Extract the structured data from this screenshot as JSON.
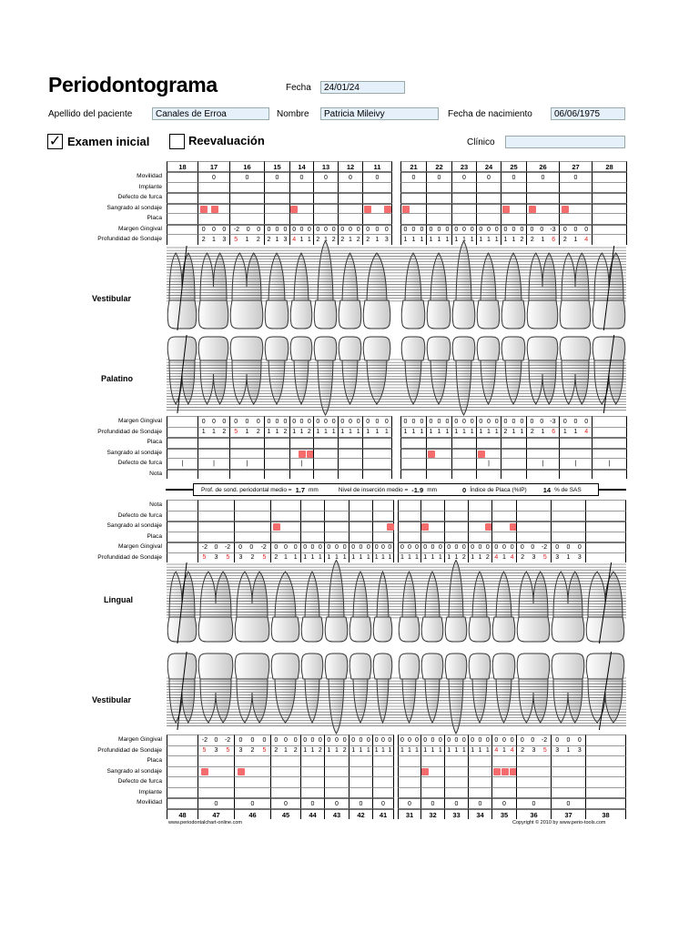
{
  "header": {
    "title": "Periodontograma",
    "date_label": "Fecha",
    "date_value": "24/01/24",
    "surname_label": "Apellido del paciente",
    "surname_value": "Canales de Erroa",
    "name_label": "Nombre",
    "name_value": "Patricia Mileivy",
    "birth_label": "Fecha de nacimiento",
    "birth_value": "06/06/1975",
    "initial_exam_label": "Examen inicial",
    "initial_exam_checked": true,
    "reeval_label": "Reevaluación",
    "reeval_checked": false,
    "clinician_label": "Clínico",
    "clinician_value": ""
  },
  "section_labels": {
    "upper_vestibular": "Vestibular",
    "palatal": "Palatino",
    "lingual": "Lingual",
    "lower_vestibular": "Vestibular"
  },
  "row_labels": {
    "mobility": "Movilidad",
    "implant": "Implante",
    "furcation": "Defecto de furca",
    "bleeding": "Sangrado al sondaje",
    "plaque": "Placa",
    "margin": "Margen Gingival",
    "depth": "Profundidad de Sondaje",
    "note": "Nota"
  },
  "summary": {
    "depth_label": "Prof. de sond. periodontal medio =",
    "depth_value": "1.7",
    "depth_unit": "mm",
    "attachment_label": "Nivel de inserción medio =",
    "attachment_value": "-1.9",
    "attachment_unit": "mm",
    "plaque_value": "0",
    "plaque_label": "Índice de Placa (%IP)",
    "bop_value": "14",
    "bop_label": "% de SAS"
  },
  "footer": {
    "left": "www.periodontalchart-online.com",
    "right": "Copyright © 2010 by www.perio-tools.com"
  },
  "colors": {
    "bleeding": "#f56c6c",
    "probing_line": "#1a1aff",
    "margin_line": "#e01010",
    "pocket_fill": "#3a3aa0",
    "field_bg": "#e6f0fb",
    "deep_value": "#e02020"
  },
  "upper": [
    {
      "n": "18",
      "missing": true,
      "mob": "",
      "a": {
        "bleed": [
          0,
          0,
          0
        ],
        "margin": null,
        "depth": null,
        "furca": ""
      },
      "b": {
        "bleed": [
          0,
          0,
          0
        ],
        "margin": null,
        "depth": null,
        "furca": "|"
      }
    },
    {
      "n": "17",
      "mob": "0",
      "a": {
        "bleed": [
          1,
          1,
          0
        ],
        "margin": [
          0,
          0,
          0
        ],
        "depth": [
          2,
          1,
          3
        ],
        "furca": ""
      },
      "b": {
        "bleed": [
          0,
          0,
          0
        ],
        "margin": [
          0,
          0,
          0
        ],
        "depth": [
          1,
          1,
          2
        ],
        "furca": "|"
      }
    },
    {
      "n": "16",
      "mob": "0",
      "a": {
        "bleed": [
          0,
          0,
          0
        ],
        "margin": [
          -2,
          0,
          0
        ],
        "depth": [
          5,
          1,
          2
        ],
        "furca": ""
      },
      "b": {
        "bleed": [
          0,
          0,
          0
        ],
        "margin": [
          0,
          0,
          0
        ],
        "depth": [
          5,
          1,
          2
        ],
        "furca": "|"
      }
    },
    {
      "n": "15",
      "mob": "0",
      "a": {
        "bleed": [
          0,
          0,
          0
        ],
        "margin": [
          0,
          0,
          0
        ],
        "depth": [
          2,
          1,
          3
        ],
        "furca": ""
      },
      "b": {
        "bleed": [
          0,
          0,
          0
        ],
        "margin": [
          0,
          0,
          0
        ],
        "depth": [
          1,
          1,
          2
        ],
        "furca": ""
      }
    },
    {
      "n": "14",
      "mob": "0",
      "a": {
        "bleed": [
          1,
          0,
          0
        ],
        "margin": [
          0,
          0,
          0
        ],
        "depth": [
          4,
          1,
          1
        ],
        "furca": ""
      },
      "b": {
        "bleed": [
          0,
          1,
          1
        ],
        "margin": [
          0,
          0,
          0
        ],
        "depth": [
          1,
          1,
          2
        ],
        "furca": "|"
      }
    },
    {
      "n": "13",
      "mob": "0",
      "a": {
        "bleed": [
          0,
          0,
          0
        ],
        "margin": [
          0,
          0,
          0
        ],
        "depth": [
          2,
          1,
          2
        ],
        "furca": ""
      },
      "b": {
        "bleed": [
          0,
          0,
          0
        ],
        "margin": [
          0,
          0,
          0
        ],
        "depth": [
          1,
          1,
          1
        ],
        "furca": ""
      }
    },
    {
      "n": "12",
      "mob": "0",
      "a": {
        "bleed": [
          0,
          0,
          0
        ],
        "margin": [
          0,
          0,
          0
        ],
        "depth": [
          2,
          1,
          2
        ],
        "furca": ""
      },
      "b": {
        "bleed": [
          0,
          0,
          0
        ],
        "margin": [
          0,
          0,
          0
        ],
        "depth": [
          1,
          1,
          1
        ],
        "furca": ""
      }
    },
    {
      "n": "11",
      "mob": "0",
      "a": {
        "bleed": [
          1,
          0,
          1
        ],
        "margin": [
          0,
          0,
          0
        ],
        "depth": [
          2,
          1,
          3
        ],
        "furca": ""
      },
      "b": {
        "bleed": [
          0,
          0,
          0
        ],
        "margin": [
          0,
          0,
          0
        ],
        "depth": [
          1,
          1,
          1
        ],
        "furca": ""
      }
    },
    {
      "n": "21",
      "mob": "0",
      "a": {
        "bleed": [
          1,
          0,
          0
        ],
        "margin": [
          0,
          0,
          0
        ],
        "depth": [
          1,
          1,
          1
        ],
        "furca": ""
      },
      "b": {
        "bleed": [
          0,
          0,
          0
        ],
        "margin": [
          0,
          0,
          0
        ],
        "depth": [
          1,
          1,
          1
        ],
        "furca": ""
      }
    },
    {
      "n": "22",
      "mob": "0",
      "a": {
        "bleed": [
          0,
          0,
          0
        ],
        "margin": [
          0,
          0,
          0
        ],
        "depth": [
          1,
          1,
          1
        ],
        "furca": ""
      },
      "b": {
        "bleed": [
          1,
          0,
          0
        ],
        "margin": [
          0,
          0,
          0
        ],
        "depth": [
          1,
          1,
          1
        ],
        "furca": ""
      }
    },
    {
      "n": "23",
      "mob": "0",
      "a": {
        "bleed": [
          0,
          0,
          0
        ],
        "margin": [
          0,
          0,
          0
        ],
        "depth": [
          1,
          1,
          1
        ],
        "furca": ""
      },
      "b": {
        "bleed": [
          0,
          0,
          0
        ],
        "margin": [
          0,
          0,
          0
        ],
        "depth": [
          1,
          1,
          1
        ],
        "furca": ""
      }
    },
    {
      "n": "24",
      "mob": "0",
      "a": {
        "bleed": [
          0,
          0,
          0
        ],
        "margin": [
          0,
          0,
          0
        ],
        "depth": [
          1,
          1,
          1
        ],
        "furca": ""
      },
      "b": {
        "bleed": [
          1,
          0,
          0
        ],
        "margin": [
          0,
          0,
          0
        ],
        "depth": [
          1,
          1,
          1
        ],
        "furca": "|"
      }
    },
    {
      "n": "25",
      "mob": "0",
      "a": {
        "bleed": [
          1,
          0,
          0
        ],
        "margin": [
          0,
          0,
          0
        ],
        "depth": [
          1,
          1,
          2
        ],
        "furca": ""
      },
      "b": {
        "bleed": [
          0,
          0,
          0
        ],
        "margin": [
          0,
          0,
          0
        ],
        "depth": [
          2,
          1,
          1
        ],
        "furca": ""
      }
    },
    {
      "n": "26",
      "mob": "0",
      "a": {
        "bleed": [
          1,
          0,
          0
        ],
        "margin": [
          0,
          0,
          -3
        ],
        "depth": [
          2,
          1,
          6
        ],
        "furca": ""
      },
      "b": {
        "bleed": [
          0,
          0,
          0
        ],
        "margin": [
          0,
          0,
          -3
        ],
        "depth": [
          2,
          1,
          6
        ],
        "furca": "|"
      }
    },
    {
      "n": "27",
      "mob": "0",
      "a": {
        "bleed": [
          1,
          0,
          0
        ],
        "margin": [
          0,
          0,
          0
        ],
        "depth": [
          2,
          1,
          4
        ],
        "furca": ""
      },
      "b": {
        "bleed": [
          0,
          0,
          0
        ],
        "margin": [
          0,
          0,
          0
        ],
        "depth": [
          1,
          1,
          4
        ],
        "furca": "|"
      }
    },
    {
      "n": "28",
      "missing": true,
      "mob": "",
      "a": {
        "bleed": [
          0,
          0,
          0
        ],
        "margin": null,
        "depth": null,
        "furca": ""
      },
      "b": {
        "bleed": [
          0,
          0,
          0
        ],
        "margin": null,
        "depth": null,
        "furca": "|"
      }
    }
  ],
  "lower": [
    {
      "n": "48",
      "missing": true,
      "mob": "",
      "a": {
        "bleed": [
          0,
          0,
          0
        ],
        "margin": null,
        "depth": null
      },
      "b": {
        "bleed": [
          0,
          0,
          0
        ],
        "margin": null,
        "depth": null
      }
    },
    {
      "n": "47",
      "mob": "0",
      "a": {
        "bleed": [
          0,
          0,
          0
        ],
        "margin": [
          -2,
          0,
          -2
        ],
        "depth": [
          5,
          3,
          5
        ]
      },
      "b": {
        "bleed": [
          1,
          0,
          0
        ],
        "margin": [
          -2,
          0,
          -2
        ],
        "depth": [
          5,
          3,
          5
        ]
      }
    },
    {
      "n": "46",
      "mob": "0",
      "a": {
        "bleed": [
          0,
          0,
          0
        ],
        "margin": [
          0,
          0,
          -2
        ],
        "depth": [
          3,
          2,
          5
        ]
      },
      "b": {
        "bleed": [
          1,
          0,
          0
        ],
        "margin": [
          0,
          0,
          0
        ],
        "depth": [
          3,
          2,
          5
        ]
      }
    },
    {
      "n": "45",
      "mob": "0",
      "a": {
        "bleed": [
          1,
          0,
          0
        ],
        "margin": [
          0,
          0,
          0
        ],
        "depth": [
          2,
          1,
          1
        ]
      },
      "b": {
        "bleed": [
          0,
          0,
          0
        ],
        "margin": [
          0,
          0,
          0
        ],
        "depth": [
          2,
          1,
          2
        ]
      }
    },
    {
      "n": "44",
      "mob": "0",
      "a": {
        "bleed": [
          0,
          0,
          0
        ],
        "margin": [
          0,
          0,
          0
        ],
        "depth": [
          1,
          1,
          1
        ]
      },
      "b": {
        "bleed": [
          0,
          0,
          0
        ],
        "margin": [
          0,
          0,
          0
        ],
        "depth": [
          1,
          1,
          2
        ]
      }
    },
    {
      "n": "43",
      "mob": "0",
      "a": {
        "bleed": [
          0,
          0,
          0
        ],
        "margin": [
          0,
          0,
          0
        ],
        "depth": [
          1,
          1,
          1
        ]
      },
      "b": {
        "bleed": [
          0,
          0,
          0
        ],
        "margin": [
          0,
          0,
          0
        ],
        "depth": [
          1,
          1,
          2
        ]
      }
    },
    {
      "n": "42",
      "mob": "0",
      "a": {
        "bleed": [
          0,
          0,
          0
        ],
        "margin": [
          0,
          0,
          0
        ],
        "depth": [
          1,
          1,
          1
        ]
      },
      "b": {
        "bleed": [
          0,
          0,
          0
        ],
        "margin": [
          0,
          0,
          0
        ],
        "depth": [
          1,
          1,
          1
        ]
      }
    },
    {
      "n": "41",
      "mob": "0",
      "a": {
        "bleed": [
          0,
          0,
          1
        ],
        "margin": [
          0,
          0,
          0
        ],
        "depth": [
          1,
          1,
          1
        ]
      },
      "b": {
        "bleed": [
          0,
          0,
          0
        ],
        "margin": [
          0,
          0,
          0
        ],
        "depth": [
          1,
          1,
          1
        ]
      }
    },
    {
      "n": "31",
      "mob": "0",
      "a": {
        "bleed": [
          0,
          0,
          0
        ],
        "margin": [
          0,
          0,
          0
        ],
        "depth": [
          1,
          1,
          1
        ]
      },
      "b": {
        "bleed": [
          0,
          0,
          0
        ],
        "margin": [
          0,
          0,
          0
        ],
        "depth": [
          1,
          1,
          1
        ]
      }
    },
    {
      "n": "32",
      "mob": "0",
      "a": {
        "bleed": [
          1,
          0,
          0
        ],
        "margin": [
          0,
          0,
          0
        ],
        "depth": [
          1,
          1,
          1
        ]
      },
      "b": {
        "bleed": [
          1,
          0,
          0
        ],
        "margin": [
          0,
          0,
          0
        ],
        "depth": [
          1,
          1,
          1
        ]
      }
    },
    {
      "n": "33",
      "mob": "0",
      "a": {
        "bleed": [
          0,
          0,
          0
        ],
        "margin": [
          0,
          0,
          0
        ],
        "depth": [
          1,
          1,
          2
        ]
      },
      "b": {
        "bleed": [
          0,
          0,
          0
        ],
        "margin": [
          0,
          0,
          0
        ],
        "depth": [
          1,
          1,
          1
        ]
      }
    },
    {
      "n": "34",
      "mob": "0",
      "a": {
        "bleed": [
          0,
          0,
          1
        ],
        "margin": [
          0,
          0,
          0
        ],
        "depth": [
          1,
          1,
          2
        ]
      },
      "b": {
        "bleed": [
          0,
          0,
          0
        ],
        "margin": [
          0,
          0,
          0
        ],
        "depth": [
          1,
          1,
          1
        ]
      }
    },
    {
      "n": "35",
      "mob": "0",
      "a": {
        "bleed": [
          0,
          0,
          1
        ],
        "margin": [
          0,
          0,
          0
        ],
        "depth": [
          4,
          1,
          4
        ]
      },
      "b": {
        "bleed": [
          1,
          1,
          1
        ],
        "margin": [
          0,
          0,
          0
        ],
        "depth": [
          4,
          1,
          4
        ]
      }
    },
    {
      "n": "36",
      "mob": "0",
      "a": {
        "bleed": [
          0,
          0,
          0
        ],
        "margin": [
          0,
          0,
          -2
        ],
        "depth": [
          2,
          3,
          5
        ]
      },
      "b": {
        "bleed": [
          0,
          0,
          0
        ],
        "margin": [
          0,
          0,
          -2
        ],
        "depth": [
          2,
          3,
          5
        ]
      }
    },
    {
      "n": "37",
      "mob": "0",
      "a": {
        "bleed": [
          0,
          0,
          0
        ],
        "margin": [
          0,
          0,
          0
        ],
        "depth": [
          3,
          1,
          3
        ]
      },
      "b": {
        "bleed": [
          0,
          0,
          0
        ],
        "margin": [
          0,
          0,
          0
        ],
        "depth": [
          3,
          1,
          3
        ]
      }
    },
    {
      "n": "38",
      "missing": true,
      "mob": "",
      "a": {
        "bleed": [
          0,
          0,
          0
        ],
        "margin": null,
        "depth": null
      },
      "b": {
        "bleed": [
          0,
          0,
          0
        ],
        "margin": null,
        "depth": null
      }
    }
  ]
}
